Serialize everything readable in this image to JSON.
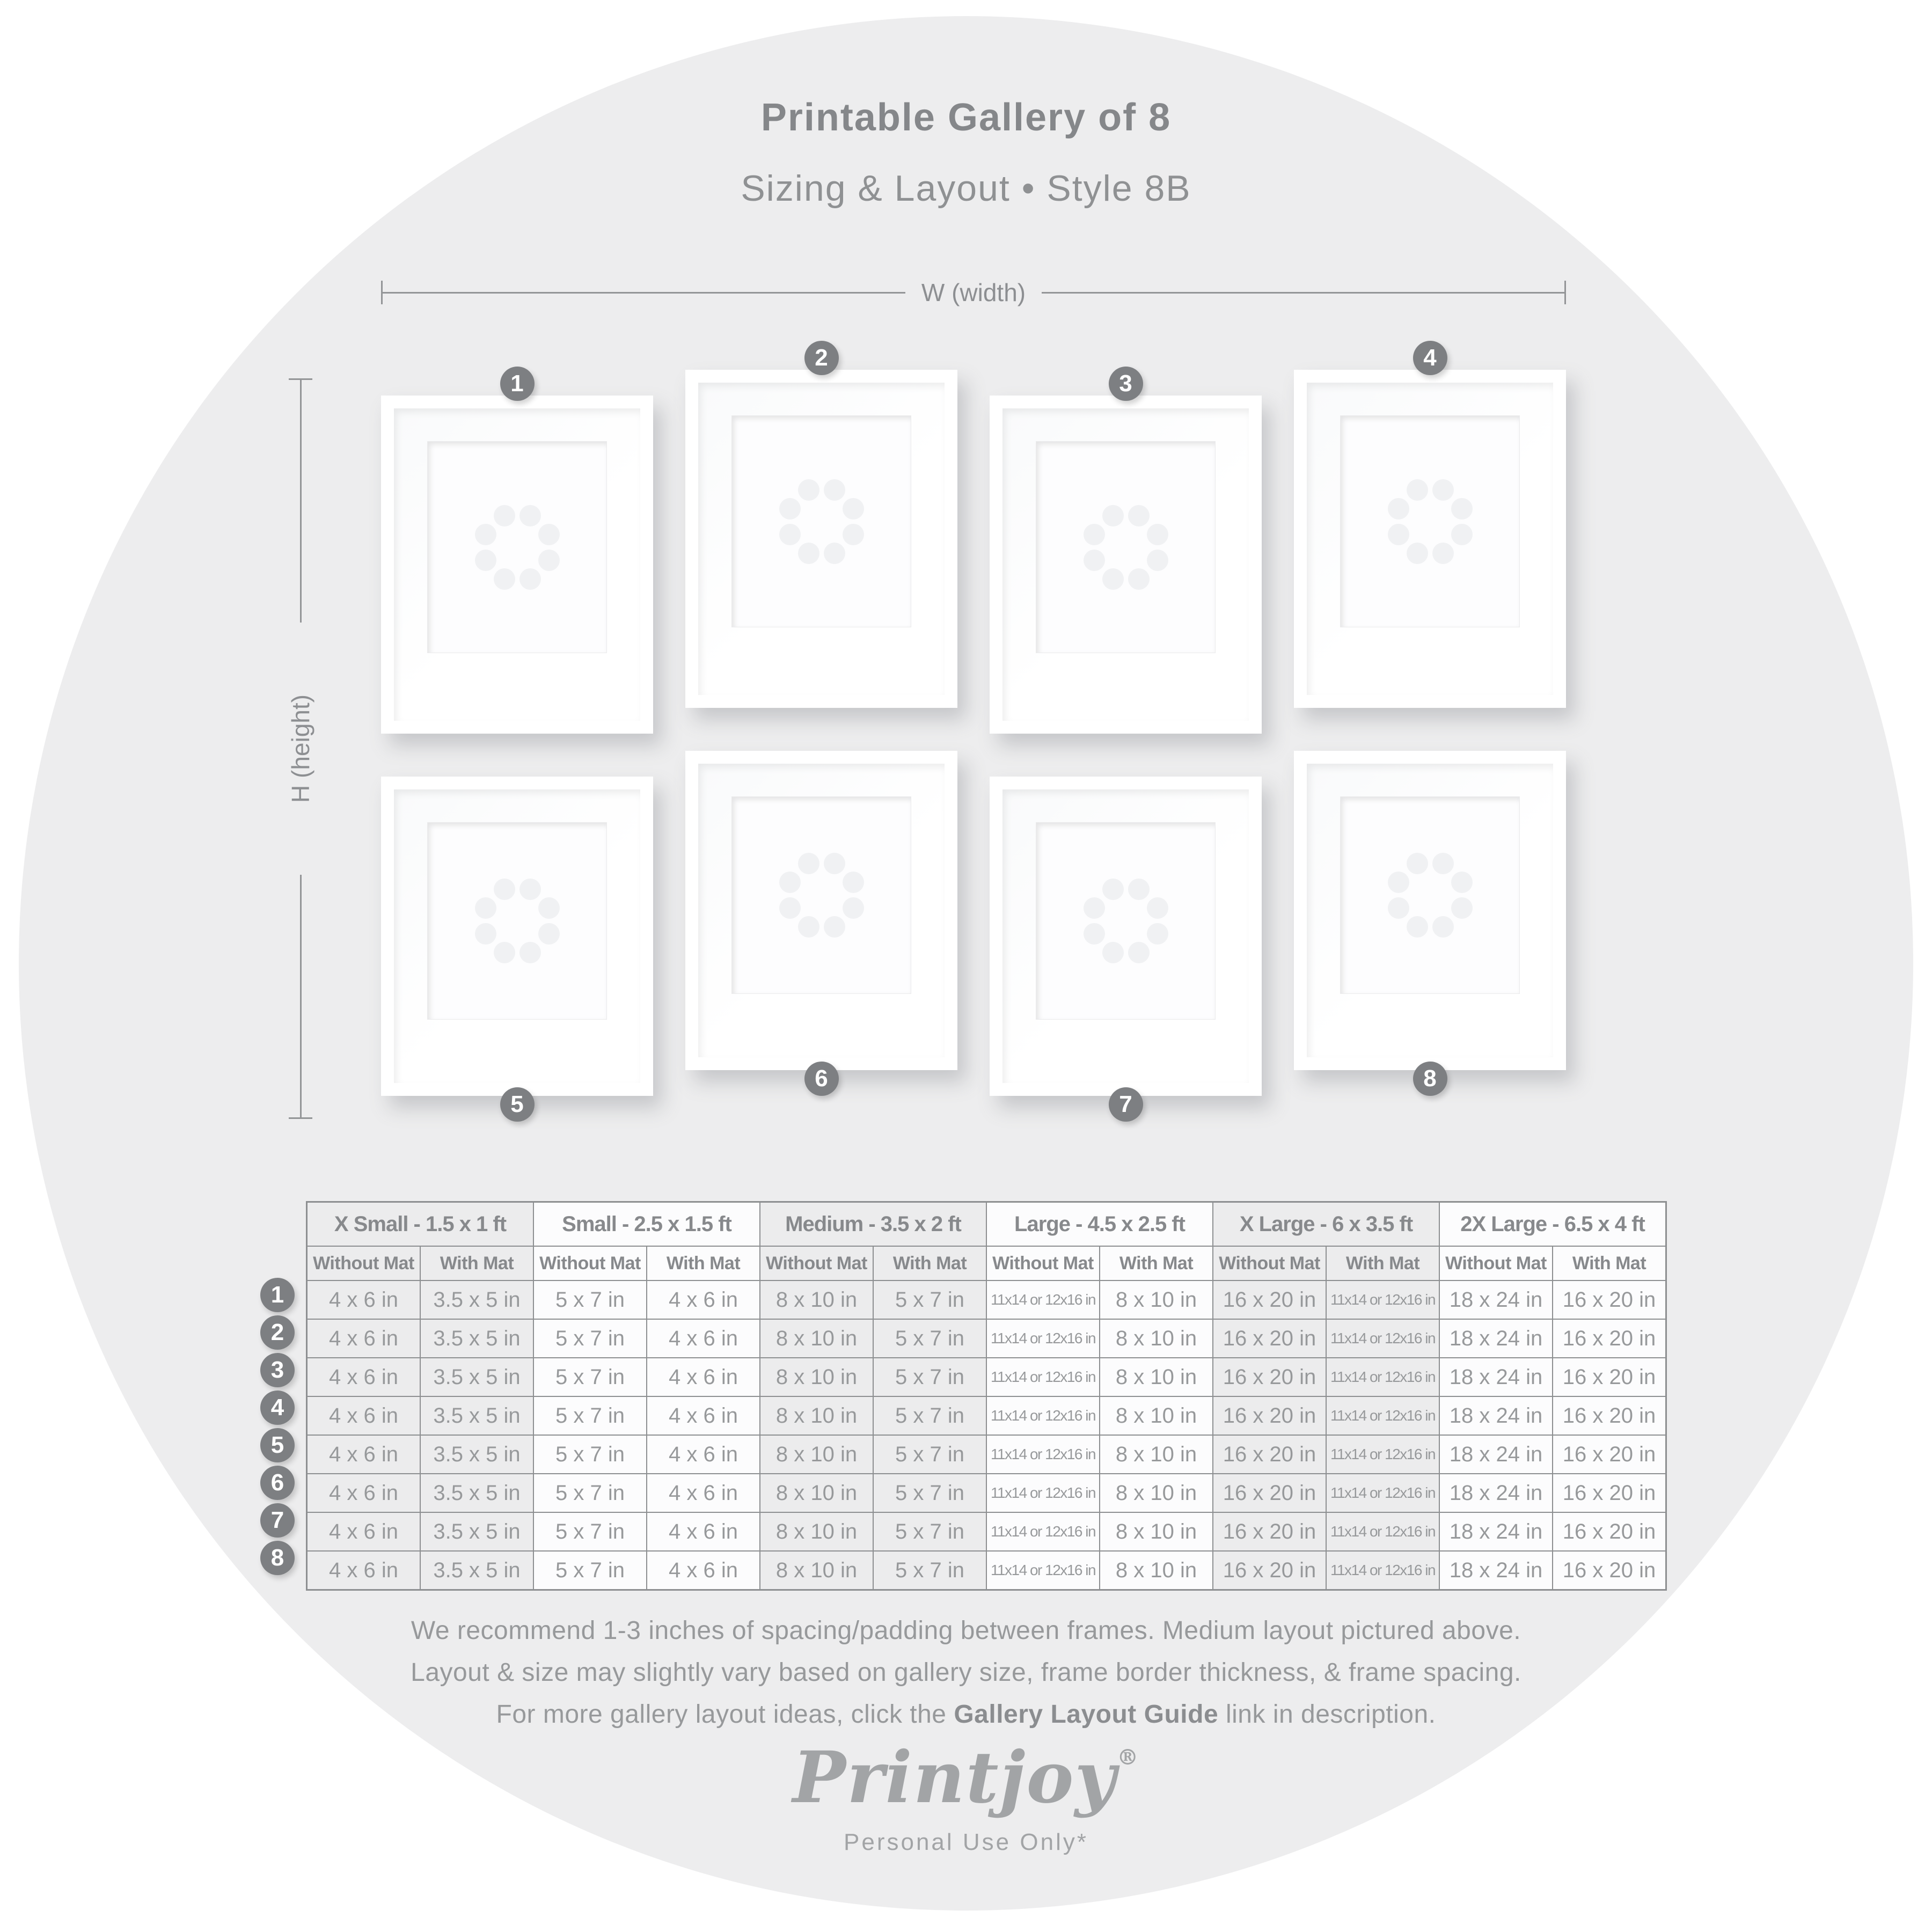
{
  "header": {
    "title": "Printable Gallery of 8",
    "subtitle": "Sizing & Layout • Style 8B"
  },
  "diagram": {
    "width_label": "W (width)",
    "height_label": "H (height)",
    "frame_numbers": [
      "1",
      "2",
      "3",
      "4",
      "5",
      "6",
      "7",
      "8"
    ]
  },
  "table": {
    "row_numbers": [
      "1",
      "2",
      "3",
      "4",
      "5",
      "6",
      "7",
      "8"
    ],
    "sub_without": "Without Mat",
    "sub_with": "With Mat",
    "groups": [
      {
        "label": "X Small - 1.5 x 1 ft",
        "without": "4 x 6 in",
        "with": "3.5 x 5 in",
        "shaded": true,
        "small_without": false,
        "small_with": false
      },
      {
        "label": "Small - 2.5 x 1.5 ft",
        "without": "5 x 7 in",
        "with": "4 x 6 in",
        "shaded": false,
        "small_without": false,
        "small_with": false
      },
      {
        "label": "Medium - 3.5 x 2 ft",
        "without": "8 x 10 in",
        "with": "5 x 7 in",
        "shaded": true,
        "small_without": false,
        "small_with": false
      },
      {
        "label": "Large - 4.5 x 2.5 ft",
        "without": "11x14 or 12x16 in",
        "with": "8 x 10 in",
        "shaded": false,
        "small_without": true,
        "small_with": false
      },
      {
        "label": "X Large - 6 x 3.5 ft",
        "without": "16 x 20 in",
        "with": "11x14 or 12x16 in",
        "shaded": true,
        "small_without": false,
        "small_with": true
      },
      {
        "label": "2X Large - 6.5 x 4 ft",
        "without": "18 x 24 in",
        "with": "16 x 20 in",
        "shaded": false,
        "small_without": false,
        "small_with": false
      }
    ]
  },
  "footer": {
    "line1": "We recommend 1-3 inches of spacing/padding between frames. Medium layout pictured above.",
    "line2": "Layout & size may slightly vary based on gallery size, frame border thickness, & frame spacing.",
    "line3_before": "For more gallery layout ideas, click the ",
    "line3_bold": "Gallery Layout Guide",
    "line3_after": " link in description."
  },
  "brand": {
    "logo": "Printjoy",
    "registered": "®",
    "tagline": "Personal Use Only*"
  }
}
